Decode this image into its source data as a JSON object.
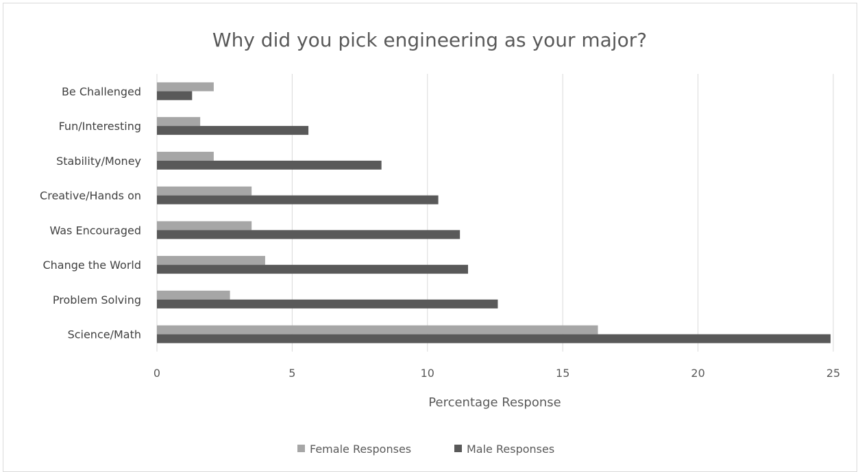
{
  "chart_data": {
    "type": "bar",
    "orientation": "horizontal",
    "title": "Why did you pick engineering as your major?",
    "xlabel": "Percentage Response",
    "ylabel": "",
    "categories": [
      "Be Challenged",
      "Fun/Interesting",
      "Stability/Money",
      "Creative/Hands on",
      "Was Encouraged",
      "Change the World",
      "Problem Solving",
      "Science/Math"
    ],
    "series": [
      {
        "name": "Female Responses",
        "color": "#a6a6a6",
        "values": [
          2.1,
          1.6,
          2.1,
          3.5,
          3.5,
          4.0,
          2.7,
          16.3
        ]
      },
      {
        "name": "Male Responses",
        "color": "#595959",
        "values": [
          1.3,
          5.6,
          8.3,
          10.4,
          11.2,
          11.5,
          12.6,
          24.9
        ]
      }
    ],
    "xlim": [
      0,
      25
    ],
    "xticks": [
      0,
      5,
      10,
      15,
      20,
      25
    ],
    "grid": "vertical",
    "legend": "bottom"
  }
}
